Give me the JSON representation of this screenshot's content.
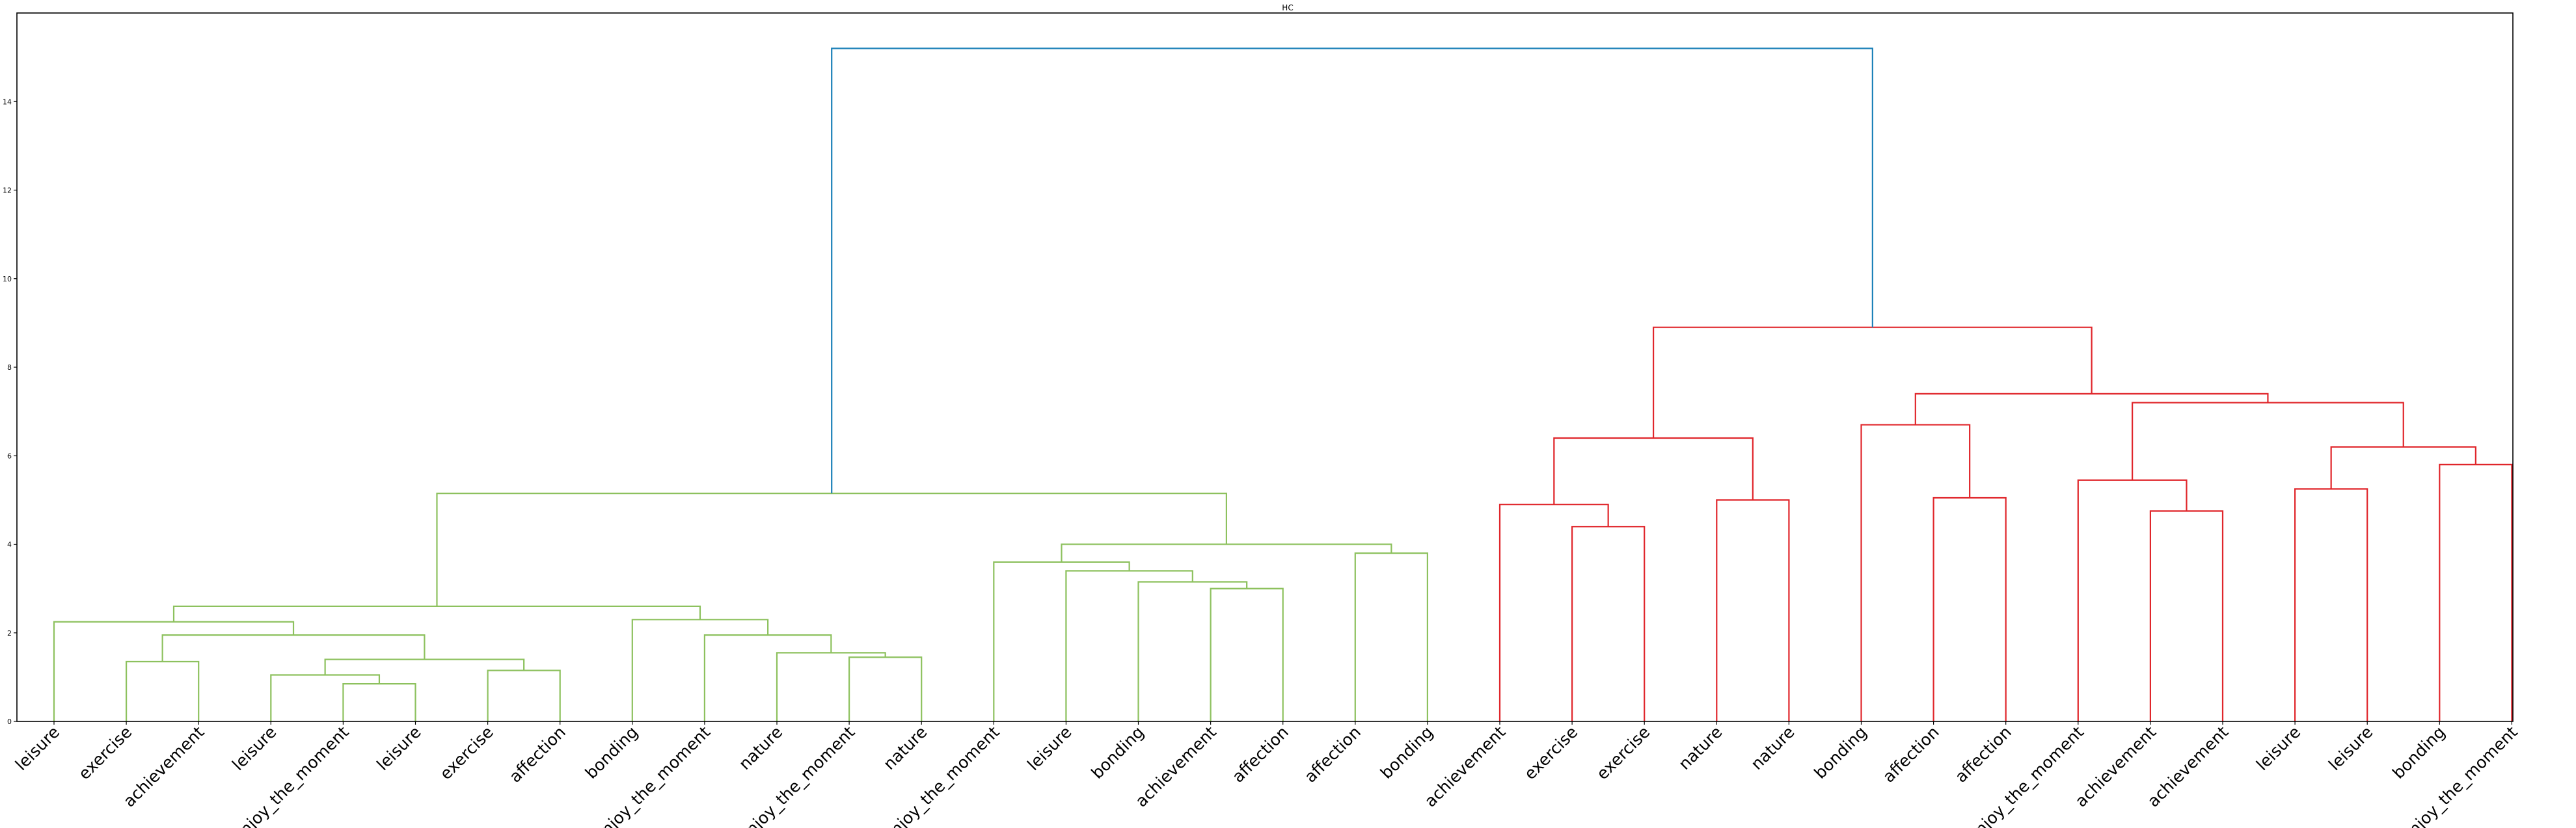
{
  "chart_data": {
    "type": "dendrogram",
    "title": "HC",
    "xlabel": "",
    "ylabel": "",
    "ylim": [
      0,
      16
    ],
    "yticks": [
      0,
      2,
      4,
      6,
      8,
      10,
      12,
      14
    ],
    "grid": false,
    "colors": {
      "green": "#8dc15e",
      "red": "#e0262b",
      "blue": "#1b80b8"
    },
    "leaves": [
      "leisure",
      "exercise",
      "achievement",
      "leisure",
      "enjoy_the_moment",
      "leisure",
      "exercise",
      "affection",
      "bonding",
      "enjoy_the_moment",
      "nature",
      "enjoy_the_moment",
      "nature",
      "enjoy_the_moment",
      "leisure",
      "bonding",
      "achievement",
      "affection",
      "affection",
      "bonding",
      "achievement",
      "exercise",
      "exercise",
      "nature",
      "nature",
      "bonding",
      "affection",
      "affection",
      "enjoy_the_moment",
      "achievement",
      "achievement",
      "leisure",
      "leisure",
      "bonding",
      "enjoy_the_moment"
    ],
    "merges": [
      {
        "id": "a",
        "left": 4,
        "right": 5,
        "height": 0.85,
        "color": "green"
      },
      {
        "id": "b",
        "left": 3,
        "right": "a",
        "height": 1.05,
        "color": "green"
      },
      {
        "id": "c",
        "left": 6,
        "right": 7,
        "height": 1.15,
        "color": "green"
      },
      {
        "id": "d",
        "left": "b",
        "right": "c",
        "height": 1.4,
        "color": "green"
      },
      {
        "id": "e",
        "left": 1,
        "right": 2,
        "height": 1.35,
        "color": "green"
      },
      {
        "id": "f",
        "left": "e",
        "right": "d",
        "height": 1.95,
        "color": "green"
      },
      {
        "id": "g",
        "left": 0,
        "right": "f",
        "height": 2.25,
        "color": "green"
      },
      {
        "id": "h",
        "left": 11,
        "right": 12,
        "height": 1.45,
        "color": "green"
      },
      {
        "id": "i",
        "left": 10,
        "right": "h",
        "height": 1.55,
        "color": "green"
      },
      {
        "id": "j",
        "left": 9,
        "right": "i",
        "height": 1.95,
        "color": "green"
      },
      {
        "id": "k",
        "left": 8,
        "right": "j",
        "height": 2.3,
        "color": "green"
      },
      {
        "id": "l",
        "left": "g",
        "right": "k",
        "height": 2.6,
        "color": "green"
      },
      {
        "id": "m",
        "left": 16,
        "right": 17,
        "height": 3.0,
        "color": "green"
      },
      {
        "id": "n",
        "left": 15,
        "right": "m",
        "height": 3.15,
        "color": "green"
      },
      {
        "id": "o",
        "left": 14,
        "right": "n",
        "height": 3.4,
        "color": "green"
      },
      {
        "id": "p",
        "left": 13,
        "right": "o",
        "height": 3.6,
        "color": "green"
      },
      {
        "id": "q",
        "left": 18,
        "right": 19,
        "height": 3.8,
        "color": "green"
      },
      {
        "id": "r",
        "left": "p",
        "right": "q",
        "height": 4.0,
        "color": "green"
      },
      {
        "id": "s",
        "left": "l",
        "right": "r",
        "height": 5.15,
        "color": "green"
      },
      {
        "id": "t",
        "left": 21,
        "right": 22,
        "height": 4.4,
        "color": "red"
      },
      {
        "id": "u",
        "left": 20,
        "right": "t",
        "height": 4.9,
        "color": "red"
      },
      {
        "id": "v",
        "left": 23,
        "right": 24,
        "height": 5.0,
        "color": "red"
      },
      {
        "id": "w",
        "left": "u",
        "right": "v",
        "height": 6.4,
        "color": "red"
      },
      {
        "id": "x",
        "left": 26,
        "right": 27,
        "height": 5.05,
        "color": "red"
      },
      {
        "id": "y",
        "left": 25,
        "right": "x",
        "height": 6.7,
        "color": "red"
      },
      {
        "id": "z",
        "left": 29,
        "right": 30,
        "height": 4.75,
        "color": "red"
      },
      {
        "id": "aa",
        "left": 28,
        "right": "z",
        "height": 5.45,
        "color": "red"
      },
      {
        "id": "ab",
        "left": 31,
        "right": 32,
        "height": 5.25,
        "color": "red"
      },
      {
        "id": "ac",
        "left": 33,
        "right": 34,
        "height": 5.8,
        "color": "red"
      },
      {
        "id": "ad",
        "left": "ab",
        "right": "ac",
        "height": 6.2,
        "color": "red"
      },
      {
        "id": "ae",
        "left": "aa",
        "right": "ad",
        "height": 7.2,
        "color": "red"
      },
      {
        "id": "af",
        "left": "y",
        "right": "ae",
        "height": 7.4,
        "color": "red"
      },
      {
        "id": "ag",
        "left": "w",
        "right": "af",
        "height": 8.9,
        "color": "red"
      },
      {
        "id": "ah",
        "left": "s",
        "right": "ag",
        "height": 15.2,
        "color": "blue"
      }
    ]
  }
}
